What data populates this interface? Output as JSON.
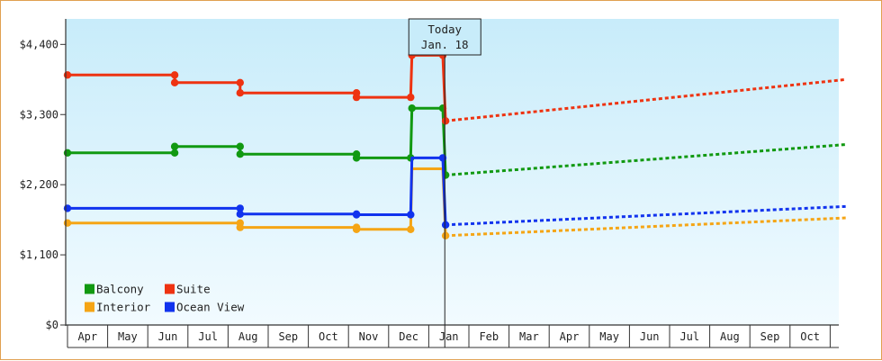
{
  "chart_data": {
    "type": "line",
    "title": "",
    "xlabel": "",
    "ylabel": "",
    "ylim": [
      0,
      4800
    ],
    "y_ticks": [
      {
        "value": 0,
        "label": "$0"
      },
      {
        "value": 1100,
        "label": "$1,100"
      },
      {
        "value": 2200,
        "label": "$2,200"
      },
      {
        "value": 3300,
        "label": "$3,300"
      },
      {
        "value": 4400,
        "label": "$4,400"
      }
    ],
    "x_months": [
      "Apr",
      "May",
      "Jun",
      "Jul",
      "Aug",
      "Sep",
      "Oct",
      "Nov",
      "Dec",
      "Jan",
      "Feb",
      "Mar",
      "Apr",
      "May",
      "Jun",
      "Jul",
      "Aug",
      "Sep",
      "Oct"
    ],
    "today": {
      "line1": "Today",
      "line2": "Jan. 18",
      "x": 9.4
    },
    "legend": {
      "placement": "bottom-left"
    },
    "series": [
      {
        "name": "Balcony",
        "color": "#119911",
        "points": [
          [
            0,
            2700
          ],
          [
            2.67,
            2700
          ],
          [
            2.67,
            2800
          ],
          [
            4.3,
            2800
          ],
          [
            4.3,
            2680
          ],
          [
            7.2,
            2680
          ],
          [
            7.2,
            2620
          ],
          [
            8.55,
            2620
          ],
          [
            8.58,
            3400
          ],
          [
            9.35,
            3400
          ],
          [
            9.42,
            2350
          ]
        ],
        "markers": [
          [
            0,
            2700
          ],
          [
            2.67,
            2700
          ],
          [
            2.67,
            2800
          ],
          [
            4.3,
            2800
          ],
          [
            4.3,
            2680
          ],
          [
            7.2,
            2680
          ],
          [
            7.2,
            2620
          ],
          [
            8.55,
            2620
          ],
          [
            8.58,
            3400
          ],
          [
            9.35,
            3400
          ],
          [
            9.42,
            2350
          ]
        ],
        "forecast": [
          [
            9.42,
            2350
          ],
          [
            19.4,
            2830
          ]
        ]
      },
      {
        "name": "Suite",
        "color": "#ee3311",
        "points": [
          [
            0,
            3920
          ],
          [
            2.67,
            3920
          ],
          [
            2.67,
            3800
          ],
          [
            4.3,
            3800
          ],
          [
            4.3,
            3640
          ],
          [
            7.2,
            3640
          ],
          [
            7.2,
            3570
          ],
          [
            8.55,
            3570
          ],
          [
            8.58,
            4230
          ],
          [
            9.35,
            4230
          ],
          [
            9.42,
            3200
          ]
        ],
        "markers": [
          [
            0,
            3920
          ],
          [
            2.67,
            3920
          ],
          [
            2.67,
            3800
          ],
          [
            4.3,
            3800
          ],
          [
            4.3,
            3640
          ],
          [
            7.2,
            3640
          ],
          [
            7.2,
            3570
          ],
          [
            8.55,
            3570
          ],
          [
            8.58,
            4230
          ],
          [
            9.35,
            4230
          ],
          [
            9.42,
            3200
          ]
        ],
        "forecast": [
          [
            9.42,
            3200
          ],
          [
            19.4,
            3850
          ]
        ]
      },
      {
        "name": "Interior",
        "color": "#f5a515",
        "points": [
          [
            0,
            1600
          ],
          [
            4.3,
            1600
          ],
          [
            4.3,
            1530
          ],
          [
            7.2,
            1530
          ],
          [
            7.2,
            1500
          ],
          [
            8.55,
            1500
          ],
          [
            8.58,
            2450
          ],
          [
            9.35,
            2450
          ],
          [
            9.42,
            1400
          ]
        ],
        "markers": [
          [
            0,
            1600
          ],
          [
            4.3,
            1600
          ],
          [
            4.3,
            1530
          ],
          [
            7.2,
            1530
          ],
          [
            7.2,
            1500
          ],
          [
            8.55,
            1500
          ],
          [
            9.42,
            1400
          ]
        ],
        "forecast": [
          [
            9.42,
            1400
          ],
          [
            19.4,
            1680
          ]
        ]
      },
      {
        "name": "Ocean View",
        "color": "#1133ee",
        "points": [
          [
            0,
            1830
          ],
          [
            4.3,
            1830
          ],
          [
            4.3,
            1740
          ],
          [
            7.2,
            1740
          ],
          [
            7.2,
            1730
          ],
          [
            8.55,
            1730
          ],
          [
            8.58,
            2620
          ],
          [
            9.35,
            2620
          ],
          [
            9.42,
            1570
          ]
        ],
        "markers": [
          [
            0,
            1830
          ],
          [
            4.3,
            1830
          ],
          [
            4.3,
            1740
          ],
          [
            7.2,
            1740
          ],
          [
            7.2,
            1730
          ],
          [
            8.55,
            1730
          ],
          [
            9.35,
            2620
          ],
          [
            9.42,
            1570
          ]
        ],
        "forecast": [
          [
            9.42,
            1570
          ],
          [
            19.4,
            1860
          ]
        ]
      }
    ]
  }
}
